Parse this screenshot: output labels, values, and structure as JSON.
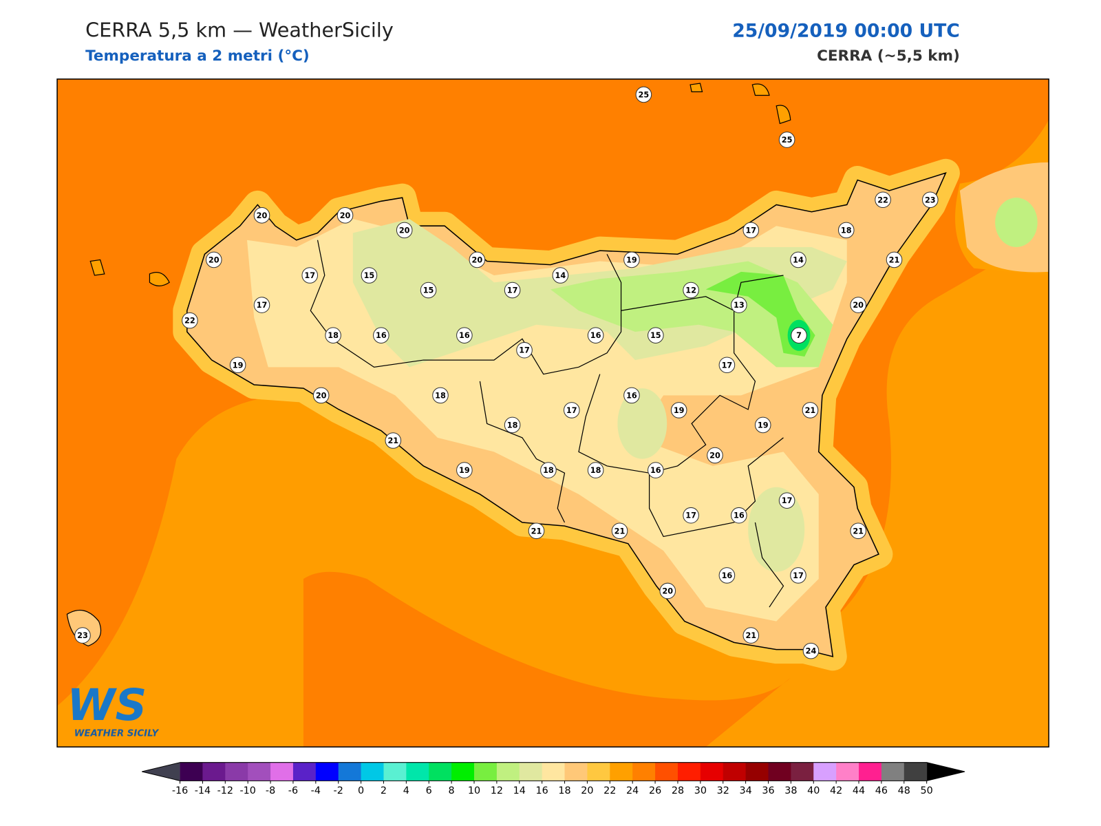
{
  "header": {
    "title": "CERRA 5,5 km — WeatherSicily",
    "subtitle": "Temperatura a 2 metri (°C)",
    "datetime": "25/09/2019 00:00 UTC",
    "model": "CERRA (~5,5 km)"
  },
  "stations": {
    "values": [
      25,
      25,
      20,
      20,
      20,
      20,
      17,
      15,
      15,
      20,
      17,
      14,
      19,
      17,
      18,
      22,
      23,
      14,
      21,
      12,
      13,
      20,
      7,
      17,
      22,
      18,
      16,
      16,
      17,
      16,
      15,
      19,
      17,
      20,
      18,
      16,
      17,
      19,
      21,
      18,
      19,
      21,
      20,
      19,
      18,
      18,
      16,
      17,
      17,
      16,
      21,
      21,
      21,
      20,
      16,
      17,
      21,
      24,
      23
    ]
  },
  "colorbar": {
    "ticks": [
      -16,
      -14,
      -12,
      -10,
      -8,
      -6,
      -4,
      -2,
      0,
      2,
      4,
      6,
      8,
      10,
      12,
      14,
      16,
      18,
      20,
      22,
      24,
      26,
      28,
      30,
      32,
      34,
      36,
      38,
      40,
      42,
      44,
      46,
      48,
      50
    ],
    "colors": [
      "#3d0052",
      "#6b1a8e",
      "#8a3aa8",
      "#a24fbc",
      "#e06fe8",
      "#5a22c8",
      "#0000ff",
      "#1478d8",
      "#00c8e6",
      "#5af0d2",
      "#00e6aa",
      "#00e060",
      "#00ee00",
      "#78ee40",
      "#c0f080",
      "#e0e8a0",
      "#ffe6a0",
      "#ffc878",
      "#ffc840",
      "#ffa000",
      "#ff8000",
      "#ff5000",
      "#ff1e00",
      "#e60000",
      "#c00000",
      "#960000",
      "#700020",
      "#7a2040",
      "#d8a0ff",
      "#ff80c8",
      "#ff2090",
      "#808080",
      "#404040"
    ],
    "under_color": "#404050",
    "over_color": "#000000"
  },
  "logo": {
    "mark": "WS",
    "text": "WEATHER SICILY"
  }
}
